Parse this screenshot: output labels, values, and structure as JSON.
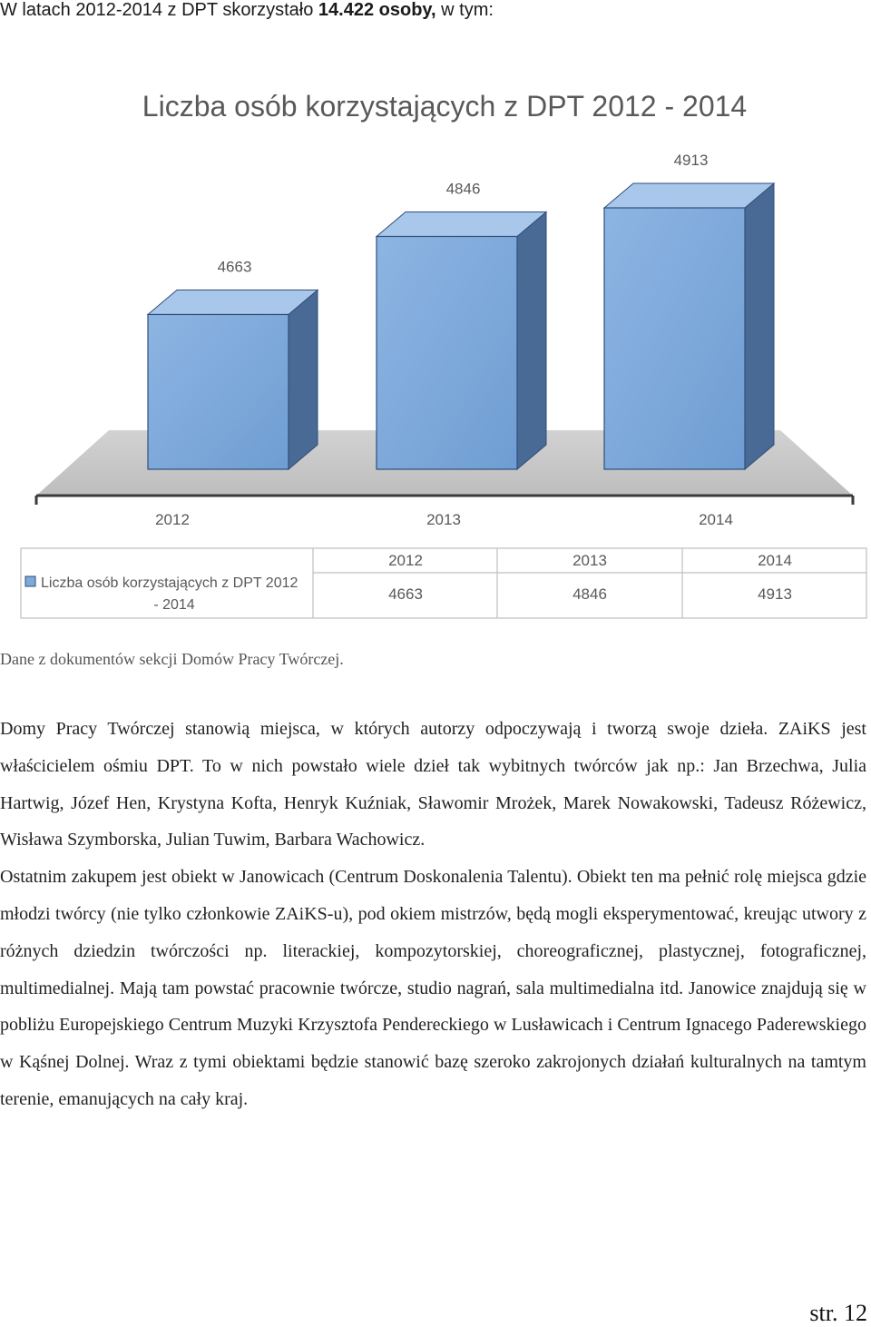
{
  "intro": {
    "prefix": "W latach 2012-2014 z DPT skorzystało ",
    "bold": "14.422 osoby,",
    "suffix": " w tym:"
  },
  "chart_data": {
    "type": "bar",
    "title": "Liczba osób korzystających z DPT 2012 - 2014",
    "categories": [
      "2012",
      "2013",
      "2014"
    ],
    "series": [
      {
        "name": "Liczba osób korzystających z DPT 2012 - 2014",
        "values": [
          4663,
          4846,
          4913
        ]
      }
    ],
    "data_labels": [
      "4663",
      "4846",
      "4913"
    ],
    "legend": "data-table-bottom",
    "legend_label_lines": [
      "Liczba osób korzystających z DPT 2012",
      "- 2014"
    ],
    "three_d": true,
    "grid": false,
    "bar_color": "#7EA9DA",
    "bar_side_color": "#4A6A96"
  },
  "note": "Dane z dokumentów sekcji Domów Pracy Twórczej.",
  "paragraphs": [
    "Domy Pracy Twórczej stanowią miejsca, w których autorzy odpoczywają i tworzą swoje dzieła. ZAiKS jest właścicielem ośmiu DPT. To w nich powstało wiele dzieł tak wybitnych twórców jak np.: Jan Brzechwa, Julia Hartwig, Józef Hen, Krystyna Kofta, Henryk Kuźniak, Sławomir Mrożek, Marek Nowakowski, Tadeusz Różewicz, Wisława Szymborska, Julian Tuwim, Barbara Wachowicz.",
    "Ostatnim zakupem jest obiekt w Janowicach (Centrum Doskonalenia Talentu). Obiekt ten ma pełnić rolę miejsca gdzie młodzi twórcy (nie tylko członkowie ZAiKS-u), pod okiem mistrzów, będą mogli eksperymentować, kreując utwory z różnych dziedzin twórczości np. literackiej, kompozytorskiej, choreograficznej, plastycznej, fotograficznej, multimedialnej. Mają tam powstać pracownie twórcze, studio nagrań, sala multimedialna itd. Janowice znajdują się w pobliżu Europejskiego Centrum Muzyki Krzysztofa Pendereckiego w Lusławicach i Centrum Ignacego Paderewskiego w Kąśnej Dolnej. Wraz z tymi obiektami będzie stanowić bazę szeroko zakrojonych działań kulturalnych na tamtym terenie, emanujących na cały kraj."
  ],
  "page_number": "str. 12"
}
